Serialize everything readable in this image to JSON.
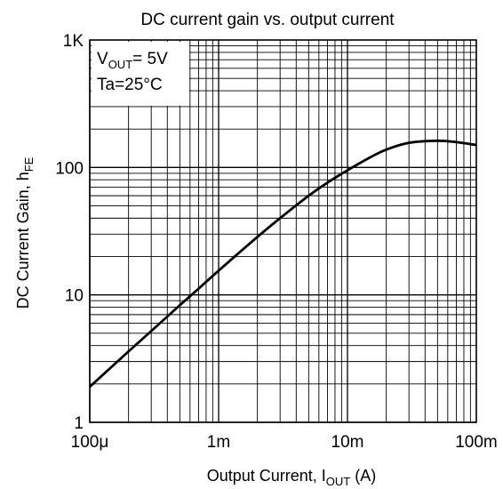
{
  "chart_data": {
    "type": "line",
    "title": "DC current gain vs. output current",
    "xlabel": {
      "main": "Output Current, I",
      "sub": "OUT",
      "tail": " (A)"
    },
    "ylabel": {
      "main": "DC Current Gain, h",
      "sub": "FE"
    },
    "xscale": "log",
    "yscale": "log",
    "xlim": [
      0.0001,
      0.1
    ],
    "ylim": [
      1,
      1000
    ],
    "grid": true,
    "x_ticks": [
      {
        "value": 0.0001,
        "label": "100μ"
      },
      {
        "value": 0.001,
        "label": "1m"
      },
      {
        "value": 0.01,
        "label": "10m"
      },
      {
        "value": 0.1,
        "label": "100m"
      }
    ],
    "y_ticks": [
      {
        "value": 1,
        "label": "1"
      },
      {
        "value": 10,
        "label": "10"
      },
      {
        "value": 100,
        "label": "100"
      },
      {
        "value": 1000,
        "label": "1K"
      }
    ],
    "annotations": {
      "vout": {
        "main": "V",
        "sub": "OUT",
        "tail": "= 5V"
      },
      "ta": "Ta=25°C"
    },
    "series": [
      {
        "x": [
          0.0001,
          0.0002,
          0.0003,
          0.0005,
          0.0007,
          0.001,
          0.002,
          0.003,
          0.005,
          0.007,
          0.01,
          0.015,
          0.02,
          0.03,
          0.05,
          0.07,
          0.1
        ],
        "y": [
          1.9,
          3.6,
          5.2,
          8.3,
          11.2,
          15.5,
          28.5,
          40,
          60,
          76,
          95,
          120,
          138,
          156,
          162,
          158,
          150
        ]
      }
    ]
  }
}
